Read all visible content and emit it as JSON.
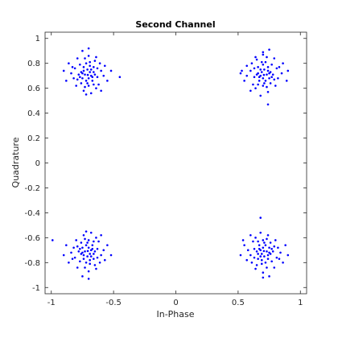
{
  "chart_data": {
    "type": "scatter",
    "title": "Second Channel",
    "xlabel": "In-Phase",
    "ylabel": "Quadrature",
    "xlim": [
      -1.05,
      1.05
    ],
    "ylim": [
      -1.05,
      1.05
    ],
    "xticks": [
      -1,
      -0.5,
      0,
      0.5,
      1
    ],
    "xtick_labels": [
      "-1",
      "-0.5",
      "0",
      "0.5",
      "1"
    ],
    "yticks": [
      -1,
      -0.8,
      -0.6,
      -0.4,
      -0.2,
      0,
      0.2,
      0.4,
      0.6,
      0.8,
      1
    ],
    "ytick_labels": [
      "-1",
      "-0.8",
      "-0.6",
      "-0.4",
      "-0.2",
      "0",
      "0.2",
      "0.4",
      "0.6",
      "0.8",
      "1"
    ],
    "grid": false,
    "marker_color": "#0000ff",
    "series": [
      {
        "points": [
          [
            -0.707,
            0.707
          ],
          [
            -0.66,
            0.73
          ],
          [
            -0.75,
            0.68
          ],
          [
            -0.69,
            0.78
          ],
          [
            -0.74,
            0.74
          ],
          [
            -0.63,
            0.69
          ],
          [
            -0.78,
            0.71
          ],
          [
            -0.7,
            0.62
          ],
          [
            -0.72,
            0.8
          ],
          [
            -0.67,
            0.66
          ],
          [
            -0.81,
            0.76
          ],
          [
            -0.6,
            0.74
          ],
          [
            -0.76,
            0.64
          ],
          [
            -0.65,
            0.82
          ],
          [
            -0.73,
            0.71
          ],
          [
            -0.68,
            0.7
          ],
          [
            -0.71,
            0.75
          ],
          [
            -0.62,
            0.63
          ],
          [
            -0.79,
            0.67
          ],
          [
            -0.7,
            0.86
          ],
          [
            -0.84,
            0.72
          ],
          [
            -0.58,
            0.7
          ],
          [
            -0.74,
            0.58
          ],
          [
            -0.66,
            0.77
          ],
          [
            -0.77,
            0.79
          ],
          [
            -0.64,
            0.6
          ],
          [
            -0.72,
            0.66
          ],
          [
            -0.69,
            0.73
          ],
          [
            -0.86,
            0.8
          ],
          [
            -0.55,
            0.66
          ],
          [
            -0.75,
            0.9
          ],
          [
            -0.61,
            0.8
          ],
          [
            -0.8,
            0.62
          ],
          [
            -0.68,
            0.56
          ],
          [
            -0.73,
            0.84
          ],
          [
            -0.67,
            0.69
          ],
          [
            -0.76,
            0.73
          ],
          [
            -0.63,
            0.76
          ],
          [
            -0.71,
            0.64
          ],
          [
            -0.82,
            0.68
          ],
          [
            -0.88,
            0.66
          ],
          [
            -0.52,
            0.74
          ],
          [
            -0.7,
            0.92
          ],
          [
            -0.6,
            0.58
          ],
          [
            -0.79,
            0.84
          ],
          [
            -0.66,
            0.63
          ],
          [
            -0.74,
            0.77
          ],
          [
            -0.65,
            0.71
          ],
          [
            -0.77,
            0.69
          ],
          [
            -0.69,
            0.81
          ],
          [
            -0.9,
            0.74
          ],
          [
            -0.45,
            0.69
          ],
          [
            -0.72,
            0.55
          ],
          [
            -0.57,
            0.78
          ],
          [
            -0.83,
            0.77
          ],
          [
            -0.64,
            0.85
          ],
          [
            -0.7,
            0.68
          ],
          [
            -0.75,
            0.72
          ],
          [
            -0.68,
            0.75
          ],
          [
            -0.73,
            0.61
          ],
          [
            0.707,
            0.707
          ],
          [
            0.66,
            0.72
          ],
          [
            0.75,
            0.68
          ],
          [
            0.7,
            0.79
          ],
          [
            0.74,
            0.74
          ],
          [
            0.63,
            0.69
          ],
          [
            0.78,
            0.71
          ],
          [
            0.7,
            0.62
          ],
          [
            0.72,
            0.81
          ],
          [
            0.67,
            0.66
          ],
          [
            0.81,
            0.76
          ],
          [
            0.6,
            0.74
          ],
          [
            0.76,
            0.64
          ],
          [
            0.65,
            0.83
          ],
          [
            0.73,
            0.71
          ],
          [
            0.68,
            0.7
          ],
          [
            0.71,
            0.75
          ],
          [
            0.62,
            0.63
          ],
          [
            0.79,
            0.67
          ],
          [
            0.7,
            0.87
          ],
          [
            0.85,
            0.72
          ],
          [
            0.57,
            0.7
          ],
          [
            0.74,
            0.57
          ],
          [
            0.66,
            0.77
          ],
          [
            0.77,
            0.79
          ],
          [
            0.64,
            0.6
          ],
          [
            0.72,
            0.66
          ],
          [
            0.69,
            0.73
          ],
          [
            0.86,
            0.8
          ],
          [
            0.55,
            0.66
          ],
          [
            0.75,
            0.91
          ],
          [
            0.61,
            0.8
          ],
          [
            0.8,
            0.62
          ],
          [
            0.68,
            0.54
          ],
          [
            0.73,
            0.85
          ],
          [
            0.67,
            0.69
          ],
          [
            0.76,
            0.73
          ],
          [
            0.63,
            0.76
          ],
          [
            0.71,
            0.64
          ],
          [
            0.82,
            0.68
          ],
          [
            0.89,
            0.66
          ],
          [
            0.53,
            0.74
          ],
          [
            0.7,
            0.89
          ],
          [
            0.6,
            0.58
          ],
          [
            0.79,
            0.84
          ],
          [
            0.66,
            0.63
          ],
          [
            0.74,
            0.77
          ],
          [
            0.65,
            0.71
          ],
          [
            0.77,
            0.69
          ],
          [
            0.69,
            0.81
          ],
          [
            0.9,
            0.74
          ],
          [
            0.52,
            0.72
          ],
          [
            0.74,
            0.47
          ],
          [
            0.57,
            0.78
          ],
          [
            0.83,
            0.77
          ],
          [
            0.64,
            0.85
          ],
          [
            0.7,
            0.68
          ],
          [
            0.75,
            0.72
          ],
          [
            0.68,
            0.75
          ],
          [
            0.73,
            0.61
          ],
          [
            -0.707,
            -0.707
          ],
          [
            -0.66,
            -0.73
          ],
          [
            -0.75,
            -0.68
          ],
          [
            -0.69,
            -0.78
          ],
          [
            -0.74,
            -0.74
          ],
          [
            -0.63,
            -0.69
          ],
          [
            -0.78,
            -0.71
          ],
          [
            -0.7,
            -0.62
          ],
          [
            -0.72,
            -0.8
          ],
          [
            -0.67,
            -0.66
          ],
          [
            -0.81,
            -0.76
          ],
          [
            -0.6,
            -0.74
          ],
          [
            -0.76,
            -0.64
          ],
          [
            -0.65,
            -0.82
          ],
          [
            -0.73,
            -0.71
          ],
          [
            -0.68,
            -0.7
          ],
          [
            -0.71,
            -0.75
          ],
          [
            -0.62,
            -0.63
          ],
          [
            -0.79,
            -0.67
          ],
          [
            -0.7,
            -0.87
          ],
          [
            -0.84,
            -0.72
          ],
          [
            -0.58,
            -0.7
          ],
          [
            -0.74,
            -0.58
          ],
          [
            -0.66,
            -0.77
          ],
          [
            -0.77,
            -0.79
          ],
          [
            -0.64,
            -0.6
          ],
          [
            -0.72,
            -0.66
          ],
          [
            -0.69,
            -0.73
          ],
          [
            -0.86,
            -0.8
          ],
          [
            -0.55,
            -0.66
          ],
          [
            -0.75,
            -0.91
          ],
          [
            -0.61,
            -0.8
          ],
          [
            -0.8,
            -0.62
          ],
          [
            -0.68,
            -0.56
          ],
          [
            -0.73,
            -0.84
          ],
          [
            -0.67,
            -0.69
          ],
          [
            -0.76,
            -0.73
          ],
          [
            -0.63,
            -0.76
          ],
          [
            -0.71,
            -0.64
          ],
          [
            -0.82,
            -0.68
          ],
          [
            -0.88,
            -0.66
          ],
          [
            -0.52,
            -0.74
          ],
          [
            -0.7,
            -0.93
          ],
          [
            -0.6,
            -0.58
          ],
          [
            -0.79,
            -0.84
          ],
          [
            -0.66,
            -0.63
          ],
          [
            -0.74,
            -0.77
          ],
          [
            -0.65,
            -0.71
          ],
          [
            -0.77,
            -0.69
          ],
          [
            -0.69,
            -0.81
          ],
          [
            -0.9,
            -0.74
          ],
          [
            -0.99,
            -0.62
          ],
          [
            -0.72,
            -0.55
          ],
          [
            -0.57,
            -0.78
          ],
          [
            -0.83,
            -0.77
          ],
          [
            -0.64,
            -0.85
          ],
          [
            -0.7,
            -0.68
          ],
          [
            -0.75,
            -0.72
          ],
          [
            -0.68,
            -0.75
          ],
          [
            -0.73,
            -0.61
          ],
          [
            0.707,
            -0.707
          ],
          [
            0.66,
            -0.73
          ],
          [
            0.75,
            -0.68
          ],
          [
            0.69,
            -0.78
          ],
          [
            0.74,
            -0.74
          ],
          [
            0.63,
            -0.69
          ],
          [
            0.78,
            -0.71
          ],
          [
            0.7,
            -0.62
          ],
          [
            0.72,
            -0.8
          ],
          [
            0.67,
            -0.66
          ],
          [
            0.81,
            -0.76
          ],
          [
            0.6,
            -0.74
          ],
          [
            0.76,
            -0.64
          ],
          [
            0.65,
            -0.82
          ],
          [
            0.73,
            -0.71
          ],
          [
            0.68,
            -0.7
          ],
          [
            0.71,
            -0.75
          ],
          [
            0.62,
            -0.63
          ],
          [
            0.79,
            -0.67
          ],
          [
            0.7,
            -0.88
          ],
          [
            0.84,
            -0.72
          ],
          [
            0.58,
            -0.7
          ],
          [
            0.74,
            -0.58
          ],
          [
            0.66,
            -0.77
          ],
          [
            0.77,
            -0.79
          ],
          [
            0.64,
            -0.6
          ],
          [
            0.72,
            -0.66
          ],
          [
            0.69,
            -0.73
          ],
          [
            0.86,
            -0.8
          ],
          [
            0.55,
            -0.66
          ],
          [
            0.75,
            -0.91
          ],
          [
            0.61,
            -0.8
          ],
          [
            0.8,
            -0.62
          ],
          [
            0.68,
            -0.56
          ],
          [
            0.73,
            -0.84
          ],
          [
            0.67,
            -0.69
          ],
          [
            0.76,
            -0.73
          ],
          [
            0.63,
            -0.76
          ],
          [
            0.71,
            -0.64
          ],
          [
            0.82,
            -0.68
          ],
          [
            0.88,
            -0.66
          ],
          [
            0.52,
            -0.74
          ],
          [
            0.7,
            -0.92
          ],
          [
            0.6,
            -0.58
          ],
          [
            0.79,
            -0.84
          ],
          [
            0.66,
            -0.63
          ],
          [
            0.74,
            -0.77
          ],
          [
            0.65,
            -0.71
          ],
          [
            0.77,
            -0.69
          ],
          [
            0.69,
            -0.81
          ],
          [
            0.9,
            -0.74
          ],
          [
            0.54,
            -0.62
          ],
          [
            0.68,
            -0.44
          ],
          [
            0.57,
            -0.78
          ],
          [
            0.83,
            -0.77
          ],
          [
            0.64,
            -0.85
          ],
          [
            0.7,
            -0.68
          ],
          [
            0.75,
            -0.72
          ],
          [
            0.68,
            -0.75
          ],
          [
            0.73,
            -0.61
          ]
        ]
      }
    ]
  }
}
